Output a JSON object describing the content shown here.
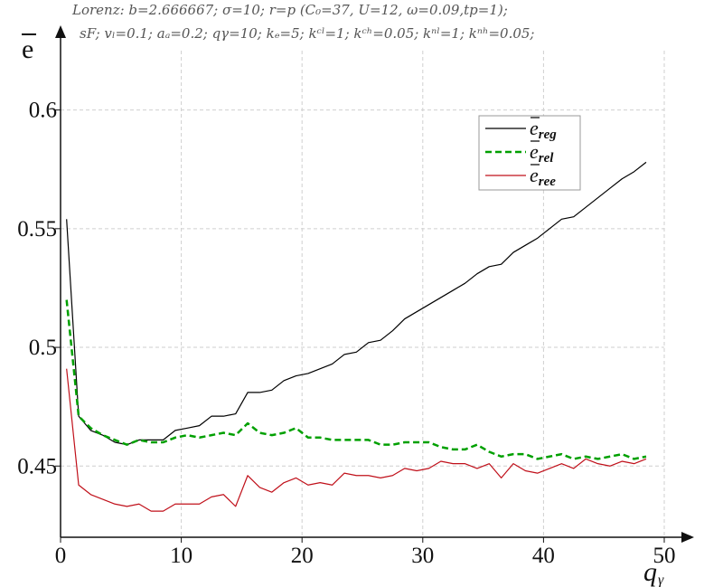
{
  "chart_data": {
    "type": "line",
    "title_line1": "Lorenz: b=2.666667; σ=10; r=p (C₀=37, U=12, ω=0.09,tp=1);",
    "title_line2": "sF; vₗ=0.1; aₐ=0.2; qγ=10; kₑ=5; kᶜˡ=1; kᶜʰ=0.05; kⁿˡ=1; kⁿʰ=0.05;",
    "xlabel": "q",
    "xlabel_sub": "γ",
    "ylabel": "e",
    "xlim": [
      0,
      50
    ],
    "ylim": [
      0.42,
      0.625
    ],
    "x_ticks": [
      0,
      10,
      20,
      30,
      40,
      50
    ],
    "x_tick_labels": [
      "0",
      "10",
      "20",
      "30",
      "40",
      "50"
    ],
    "y_ticks": [
      0.45,
      0.5,
      0.55,
      0.6
    ],
    "y_tick_labels": [
      "0.45",
      "0.5",
      "0.55",
      "0.6"
    ],
    "grid": true,
    "legend_position": "top-right",
    "series": [
      {
        "name": "e",
        "name_sub": "reg",
        "color": "#000000",
        "style": "solid",
        "x": [
          0.5,
          1.5,
          2.5,
          3.5,
          4.5,
          5.5,
          6.5,
          7.5,
          8.5,
          9.5,
          10.5,
          11.5,
          12.5,
          13.5,
          14.5,
          15.5,
          16.5,
          17.5,
          18.5,
          19.5,
          20.5,
          21.5,
          22.5,
          23.5,
          24.5,
          25.5,
          26.5,
          27.5,
          28.5,
          29.5,
          30.5,
          31.5,
          32.5,
          33.5,
          34.5,
          35.5,
          36.5,
          37.5,
          38.5,
          39.5,
          40.5,
          41.5,
          42.5,
          43.5,
          44.5,
          45.5,
          46.5,
          47.5,
          48.5
        ],
        "y": [
          0.554,
          0.471,
          0.465,
          0.463,
          0.46,
          0.459,
          0.461,
          0.461,
          0.461,
          0.465,
          0.466,
          0.467,
          0.471,
          0.471,
          0.472,
          0.481,
          0.481,
          0.482,
          0.486,
          0.488,
          0.489,
          0.491,
          0.493,
          0.497,
          0.498,
          0.502,
          0.503,
          0.507,
          0.512,
          0.515,
          0.518,
          0.521,
          0.524,
          0.527,
          0.531,
          0.534,
          0.535,
          0.54,
          0.543,
          0.546,
          0.55,
          0.554,
          0.555,
          0.559,
          0.563,
          0.567,
          0.571,
          0.574,
          0.578
        ]
      },
      {
        "name": "e",
        "name_sub": "rel",
        "color": "#00a000",
        "style": "dashed",
        "x": [
          0.5,
          1.5,
          2.5,
          3.5,
          4.5,
          5.5,
          6.5,
          7.5,
          8.5,
          9.5,
          10.5,
          11.5,
          12.5,
          13.5,
          14.5,
          15.5,
          16.5,
          17.5,
          18.5,
          19.5,
          20.5,
          21.5,
          22.5,
          23.5,
          24.5,
          25.5,
          26.5,
          27.5,
          28.5,
          29.5,
          30.5,
          31.5,
          32.5,
          33.5,
          34.5,
          35.5,
          36.5,
          37.5,
          38.5,
          39.5,
          40.5,
          41.5,
          42.5,
          43.5,
          44.5,
          45.5,
          46.5,
          47.5,
          48.5
        ],
        "y": [
          0.52,
          0.471,
          0.466,
          0.463,
          0.461,
          0.459,
          0.461,
          0.46,
          0.46,
          0.462,
          0.463,
          0.462,
          0.463,
          0.464,
          0.463,
          0.468,
          0.464,
          0.463,
          0.464,
          0.466,
          0.462,
          0.462,
          0.461,
          0.461,
          0.461,
          0.461,
          0.459,
          0.459,
          0.46,
          0.46,
          0.46,
          0.458,
          0.457,
          0.457,
          0.459,
          0.456,
          0.454,
          0.455,
          0.455,
          0.453,
          0.454,
          0.455,
          0.453,
          0.454,
          0.453,
          0.454,
          0.455,
          0.453,
          0.454
        ]
      },
      {
        "name": "e",
        "name_sub": "ree",
        "color": "#c0101a",
        "style": "solid",
        "x": [
          0.5,
          1.5,
          2.5,
          3.5,
          4.5,
          5.5,
          6.5,
          7.5,
          8.5,
          9.5,
          10.5,
          11.5,
          12.5,
          13.5,
          14.5,
          15.5,
          16.5,
          17.5,
          18.5,
          19.5,
          20.5,
          21.5,
          22.5,
          23.5,
          24.5,
          25.5,
          26.5,
          27.5,
          28.5,
          29.5,
          30.5,
          31.5,
          32.5,
          33.5,
          34.5,
          35.5,
          36.5,
          37.5,
          38.5,
          39.5,
          40.5,
          41.5,
          42.5,
          43.5,
          44.5,
          45.5,
          46.5,
          47.5,
          48.5
        ],
        "y": [
          0.491,
          0.442,
          0.438,
          0.436,
          0.434,
          0.433,
          0.434,
          0.431,
          0.431,
          0.434,
          0.434,
          0.434,
          0.437,
          0.438,
          0.433,
          0.446,
          0.441,
          0.439,
          0.443,
          0.445,
          0.442,
          0.443,
          0.442,
          0.447,
          0.446,
          0.446,
          0.445,
          0.446,
          0.449,
          0.448,
          0.449,
          0.452,
          0.451,
          0.451,
          0.449,
          0.451,
          0.445,
          0.451,
          0.448,
          0.447,
          0.449,
          0.451,
          0.449,
          0.453,
          0.451,
          0.45,
          0.452,
          0.451,
          0.453
        ]
      }
    ]
  }
}
